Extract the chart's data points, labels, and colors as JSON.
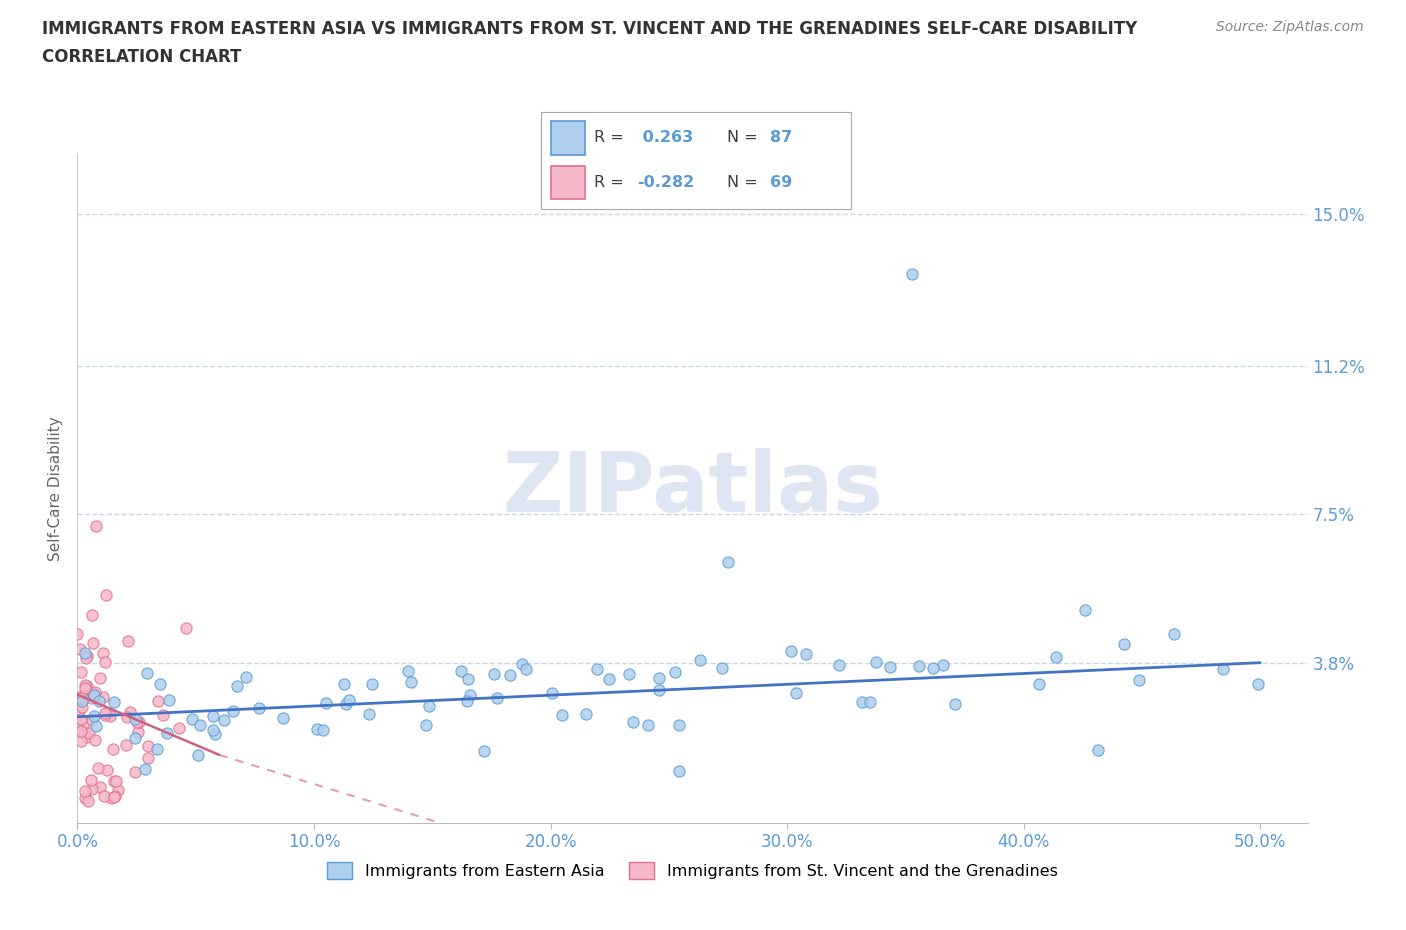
{
  "title_line1": "IMMIGRANTS FROM EASTERN ASIA VS IMMIGRANTS FROM ST. VINCENT AND THE GRENADINES SELF-CARE DISABILITY",
  "title_line2": "CORRELATION CHART",
  "source_text": "Source: ZipAtlas.com",
  "ylabel": "Self-Care Disability",
  "xlim": [
    0.0,
    0.52
  ],
  "ylim": [
    -0.002,
    0.165
  ],
  "yticks": [
    0.038,
    0.075,
    0.112,
    0.15
  ],
  "ytick_labels": [
    "3.8%",
    "7.5%",
    "11.2%",
    "15.0%"
  ],
  "xticks": [
    0.0,
    0.1,
    0.2,
    0.3,
    0.4,
    0.5
  ],
  "xtick_labels": [
    "0.0%",
    "10.0%",
    "20.0%",
    "30.0%",
    "40.0%",
    "50.0%"
  ],
  "R_eastern_asia": 0.263,
  "N_eastern_asia": 87,
  "R_st_vincent": -0.282,
  "N_st_vincent": 69,
  "color_eastern_asia_fill": "#aecfed",
  "color_eastern_asia_edge": "#5b9bd5",
  "color_st_vincent_fill": "#f5b8c8",
  "color_st_vincent_edge": "#e07090",
  "color_trend_ea": "#4472c4",
  "color_trend_sv": "#d06080",
  "title_color": "#333333",
  "tick_color": "#5b9bd5",
  "grid_color": "#c8d4e8",
  "watermark_color": "#dde6f2",
  "background_color": "#ffffff",
  "source_color": "#888888"
}
